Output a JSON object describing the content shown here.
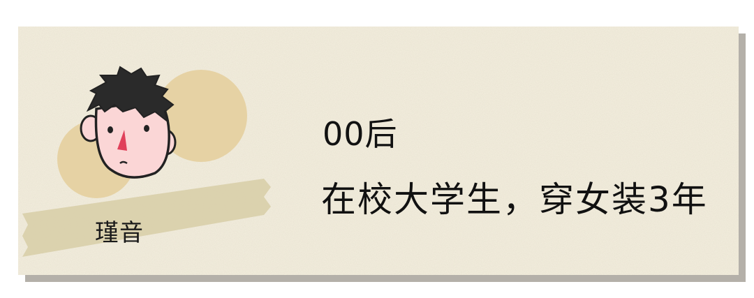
{
  "profile": {
    "name": "瑾音",
    "line1": "00后",
    "line2": "在校大学生，穿女装3年"
  },
  "icons": {
    "avatar": "cartoon-boy-face-icon"
  },
  "colors": {
    "card_bg": "#f4efdf",
    "shadow": "#b4b0a9",
    "circle": "#e6d2a4",
    "tape": "#d9cfaa",
    "text": "#111111",
    "skin": "#fbd6d6",
    "hair": "#2a2a2a",
    "nose": "#e0405a"
  }
}
